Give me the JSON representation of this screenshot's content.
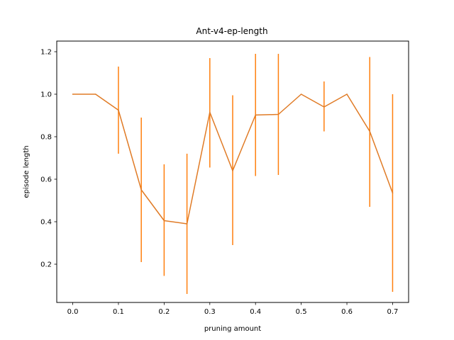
{
  "chart_data": {
    "type": "line",
    "title": "Ant-v4-ep-length",
    "xlabel": "pruning amount",
    "ylabel": "episode length",
    "xlim": [
      -0.035,
      0.735
    ],
    "ylim": [
      0.02,
      1.25
    ],
    "xticks": [
      0.0,
      0.1,
      0.2,
      0.3,
      0.4,
      0.5,
      0.6,
      0.7
    ],
    "xtick_labels": [
      "0.0",
      "0.1",
      "0.2",
      "0.3",
      "0.4",
      "0.5",
      "0.6",
      "0.7"
    ],
    "yticks": [
      0.2,
      0.4,
      0.6,
      0.8,
      1.0,
      1.2
    ],
    "ytick_labels": [
      "0.2",
      "0.4",
      "0.6",
      "0.8",
      "1.0",
      "1.2"
    ],
    "grid": false,
    "series": [
      {
        "color": "#ff7f0e",
        "line_color": "#e07b26",
        "x": [
          0.0,
          0.05,
          0.1,
          0.15,
          0.2,
          0.25,
          0.3,
          0.35,
          0.4,
          0.45,
          0.5,
          0.55,
          0.6,
          0.65,
          0.7
        ],
        "y": [
          1.0,
          1.0,
          0.925,
          0.55,
          0.405,
          0.39,
          0.915,
          0.64,
          0.902,
          0.905,
          1.0,
          0.94,
          1.0,
          0.825,
          0.535
        ],
        "error_low": [
          1.0,
          1.0,
          0.72,
          0.21,
          0.145,
          0.06,
          0.655,
          0.29,
          0.615,
          0.62,
          1.0,
          0.825,
          1.0,
          0.47,
          0.07
        ],
        "error_high": [
          1.0,
          1.0,
          1.13,
          0.89,
          0.67,
          0.72,
          1.17,
          0.995,
          1.19,
          1.19,
          1.0,
          1.06,
          1.0,
          1.175,
          1.0
        ]
      }
    ]
  }
}
